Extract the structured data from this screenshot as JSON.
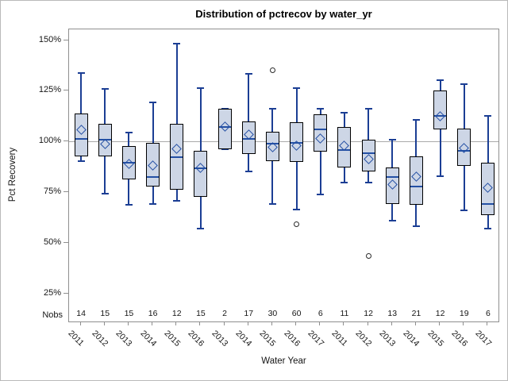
{
  "title": "Distribution of pctrecov by water_yr",
  "y_axis": {
    "label": "Pct Recovery",
    "ticks": [
      {
        "label": "150%",
        "value": 150
      },
      {
        "label": "125%",
        "value": 125
      },
      {
        "label": "100%",
        "value": 100
      },
      {
        "label": "75%",
        "value": 75
      },
      {
        "label": "50%",
        "value": 50
      },
      {
        "label": "25%",
        "value": 25
      }
    ]
  },
  "x_axis": {
    "label": "Water Year"
  },
  "nobs_label": "Nobs",
  "colors": {
    "box_fill": "#cdd6e6",
    "box_border": "#000000",
    "whisker": "#1b3e94",
    "median": "#2450a4",
    "mean_outline": "#2450a4",
    "outlier_outline": "#2b2b2b",
    "reference_line": "#a9a9a9",
    "frame": "#8f8f8f",
    "text": "#151515"
  },
  "chart_data": {
    "type": "boxplot",
    "title": "Distribution of pctrecov by water_yr",
    "xlabel": "Water Year",
    "ylabel": "Pct Recovery",
    "ylim": [
      25,
      150
    ],
    "y_tick_step": 25,
    "grid": false,
    "reference_line": 100,
    "categories": [
      "2011",
      "2012",
      "2013",
      "2014",
      "2015",
      "2016",
      "2013",
      "2014",
      "2015",
      "2016",
      "2017",
      "2011",
      "2012",
      "2013",
      "2014",
      "2015",
      "2016",
      "2017"
    ],
    "nobs": [
      14,
      15,
      15,
      16,
      12,
      15,
      2,
      17,
      30,
      60,
      6,
      11,
      12,
      13,
      21,
      12,
      19,
      6
    ],
    "boxes": [
      {
        "year": "2011",
        "nobs": 14,
        "whisker_low": 90.5,
        "q1": 93,
        "median": 101.5,
        "q3": 114,
        "whisker_high": 134,
        "mean": 106,
        "outliers": []
      },
      {
        "year": "2012",
        "nobs": 15,
        "whisker_low": 74.5,
        "q1": 93,
        "median": 101,
        "q3": 109,
        "whisker_high": 126,
        "mean": 99,
        "outliers": []
      },
      {
        "year": "2013",
        "nobs": 15,
        "whisker_low": 69,
        "q1": 81.5,
        "median": 89.5,
        "q3": 98,
        "whisker_high": 104.5,
        "mean": 89,
        "outliers": []
      },
      {
        "year": "2014",
        "nobs": 16,
        "whisker_low": 69.5,
        "q1": 78,
        "median": 82.5,
        "q3": 99.5,
        "whisker_high": 119.5,
        "mean": 88.5,
        "outliers": []
      },
      {
        "year": "2015",
        "nobs": 12,
        "whisker_low": 71,
        "q1": 76.5,
        "median": 92.5,
        "q3": 109,
        "whisker_high": 148.5,
        "mean": 96.5,
        "outliers": []
      },
      {
        "year": "2016",
        "nobs": 15,
        "whisker_low": 57,
        "q1": 73,
        "median": 87,
        "q3": 95.5,
        "whisker_high": 126.5,
        "mean": 87,
        "outliers": []
      },
      {
        "year": "2013",
        "nobs": 2,
        "whisker_low": 96.5,
        "q1": 96.5,
        "median": 107.5,
        "q3": 116.5,
        "whisker_high": 116.5,
        "mean": 107.5,
        "outliers": []
      },
      {
        "year": "2014",
        "nobs": 17,
        "whisker_low": 85.5,
        "q1": 94,
        "median": 101.5,
        "q3": 110,
        "whisker_high": 133.5,
        "mean": 103.5,
        "outliers": []
      },
      {
        "year": "2015",
        "nobs": 30,
        "whisker_low": 69.5,
        "q1": 90.5,
        "median": 99,
        "q3": 105,
        "whisker_high": 116.5,
        "mean": 97.5,
        "outliers": [
          135.5
        ]
      },
      {
        "year": "2016",
        "nobs": 60,
        "whisker_low": 66.5,
        "q1": 90,
        "median": 99.5,
        "q3": 109.5,
        "whisker_high": 126.5,
        "mean": 98,
        "outliers": [
          59.5
        ]
      },
      {
        "year": "2017",
        "nobs": 6,
        "whisker_low": 74,
        "q1": 95,
        "median": 106,
        "q3": 113.5,
        "whisker_high": 116.5,
        "mean": 101.5,
        "outliers": []
      },
      {
        "year": "2011",
        "nobs": 11,
        "whisker_low": 80,
        "q1": 87.5,
        "median": 96,
        "q3": 107.5,
        "whisker_high": 114.5,
        "mean": 98,
        "outliers": []
      },
      {
        "year": "2012",
        "nobs": 12,
        "whisker_low": 80,
        "q1": 85.5,
        "median": 94.5,
        "q3": 101,
        "whisker_high": 116.5,
        "mean": 91.5,
        "outliers": [
          43.5
        ]
      },
      {
        "year": "2013",
        "nobs": 13,
        "whisker_low": 61,
        "q1": 69.5,
        "median": 82.5,
        "q3": 87.5,
        "whisker_high": 101,
        "mean": 79,
        "outliers": []
      },
      {
        "year": "2014",
        "nobs": 21,
        "whisker_low": 58.5,
        "q1": 69,
        "median": 78,
        "q3": 93,
        "whisker_high": 111,
        "mean": 83,
        "outliers": []
      },
      {
        "year": "2015",
        "nobs": 12,
        "whisker_low": 83,
        "q1": 106,
        "median": 113,
        "q3": 125.5,
        "whisker_high": 130.5,
        "mean": 112.5,
        "outliers": []
      },
      {
        "year": "2016",
        "nobs": 19,
        "whisker_low": 66,
        "q1": 88,
        "median": 95.5,
        "q3": 106.5,
        "whisker_high": 128.5,
        "mean": 97,
        "outliers": []
      },
      {
        "year": "2017",
        "nobs": 6,
        "whisker_low": 57,
        "q1": 64,
        "median": 69.5,
        "q3": 89.5,
        "whisker_high": 113,
        "mean": 77.5,
        "outliers": []
      }
    ]
  }
}
